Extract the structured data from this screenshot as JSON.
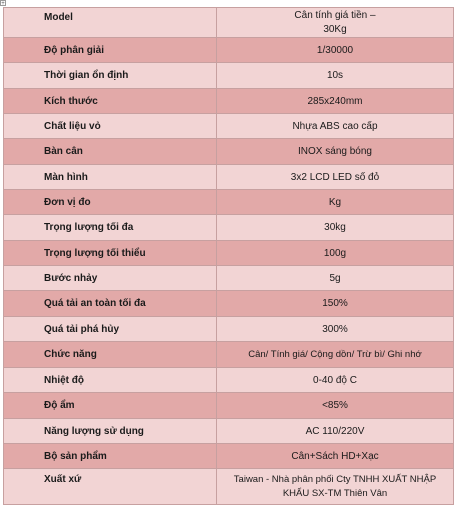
{
  "rows": [
    {
      "label": "Model",
      "value": "Cân tính giá tiền –\n30Kg"
    },
    {
      "label": "Độ phân giải",
      "value": "1/30000"
    },
    {
      "label": "Thời gian ổn định",
      "value": "10s"
    },
    {
      "label": "Kích thước",
      "value": "285x240mm"
    },
    {
      "label": "Chất liệu vỏ",
      "value": "Nhựa ABS cao cấp"
    },
    {
      "label": "Bàn cân",
      "value": "INOX sáng bóng"
    },
    {
      "label": "Màn hình",
      "value": "3x2 LCD LED số đỏ"
    },
    {
      "label": "Đơn vị đo",
      "value": "Kg"
    },
    {
      "label": "Trọng lượng tối đa",
      "value": "30kg"
    },
    {
      "label": "Trọng lượng tối thiểu",
      "value": "100g"
    },
    {
      "label": "Bước nhảy",
      "value": "5g"
    },
    {
      "label": "Quá tải an toàn tối đa",
      "value": "150%"
    },
    {
      "label": "Quá tải phá hủy",
      "value": "300%"
    },
    {
      "label": "Chức năng",
      "value": "Cân/ Tính giá/ Cộng dồn/ Trừ bì/ Ghi nhớ"
    },
    {
      "label": "Nhiệt độ",
      "value": "0-40 độ C"
    },
    {
      "label": "Độ ẩm",
      "value": "<85%"
    },
    {
      "label": "Năng lượng sử dụng",
      "value": "AC 110/220V"
    },
    {
      "label": "Bộ sản phẩm",
      "value": "Cân+Sách HD+Xạc"
    },
    {
      "label": "Xuất xứ",
      "value": "Taiwan - Nhà phân phối Cty TNHH XUẤT NHẬP\nKHẨU SX-TM Thiên Vân"
    }
  ]
}
